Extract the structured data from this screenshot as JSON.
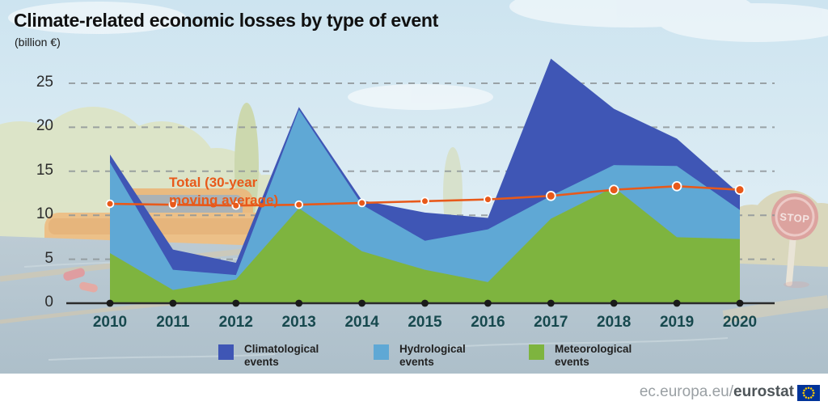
{
  "title": "Climate-related economic losses by type of event",
  "subtitle": "(billion €)",
  "annotation": {
    "line1": "Total (30-year",
    "line2": "moving average)"
  },
  "background": {
    "stop_sign_text": "STOP"
  },
  "footer": {
    "url_prefix": "ec.europa.eu/",
    "url_bold": "eurostat"
  },
  "legend": [
    {
      "label": "Climatological events",
      "color": "#3f56b5"
    },
    {
      "label": "Hydrological events",
      "color": "#5fa8d5"
    },
    {
      "label": "Meteorological events",
      "color": "#7eb43f"
    }
  ],
  "colors": {
    "climatological": "#3f56b5",
    "hydrological": "#5fa8d5",
    "meteorological": "#7eb43f",
    "total_line": "#e8591a",
    "axis": "#2b2b2b",
    "gridline": "#8f9699",
    "year_label": "#17494e"
  },
  "chart_data": {
    "type": "area",
    "stacked": true,
    "title": "Climate-related economic losses by type of event",
    "ylabel": "(billion €)",
    "x": [
      2010,
      2011,
      2012,
      2013,
      2014,
      2015,
      2016,
      2017,
      2018,
      2019,
      2020
    ],
    "series": [
      {
        "name": "Meteorological events",
        "color": "#7eb43f",
        "values": [
          5.7,
          1.5,
          2.7,
          10.8,
          5.9,
          3.8,
          2.4,
          9.6,
          13.2,
          7.5,
          7.3
        ]
      },
      {
        "name": "Hydrological events",
        "color": "#5fa8d5",
        "values": [
          10.3,
          2.3,
          0.5,
          11.2,
          5.3,
          3.3,
          6.0,
          2.6,
          2.5,
          8.1,
          3.3
        ]
      },
      {
        "name": "Climatological events",
        "color": "#3f56b5",
        "values": [
          0.9,
          2.3,
          1.4,
          0.3,
          0.5,
          3.2,
          1.3,
          15.6,
          6.4,
          3.1,
          1.8
        ]
      }
    ],
    "totals": [
      16.9,
      6.1,
      4.6,
      22.3,
      11.7,
      10.3,
      9.7,
      27.8,
      22.1,
      18.7,
      12.4
    ],
    "line_series": {
      "name": "Total (30-year moving average)",
      "color": "#e8591a",
      "values": [
        11.3,
        11.2,
        11.1,
        11.2,
        11.4,
        11.6,
        11.8,
        12.2,
        12.9,
        13.3,
        12.9
      ]
    },
    "yticks": [
      0,
      5,
      10,
      15,
      20,
      25
    ],
    "ylim": [
      0,
      28
    ],
    "grid": "horizontal-dashed",
    "legend_position": "bottom"
  }
}
